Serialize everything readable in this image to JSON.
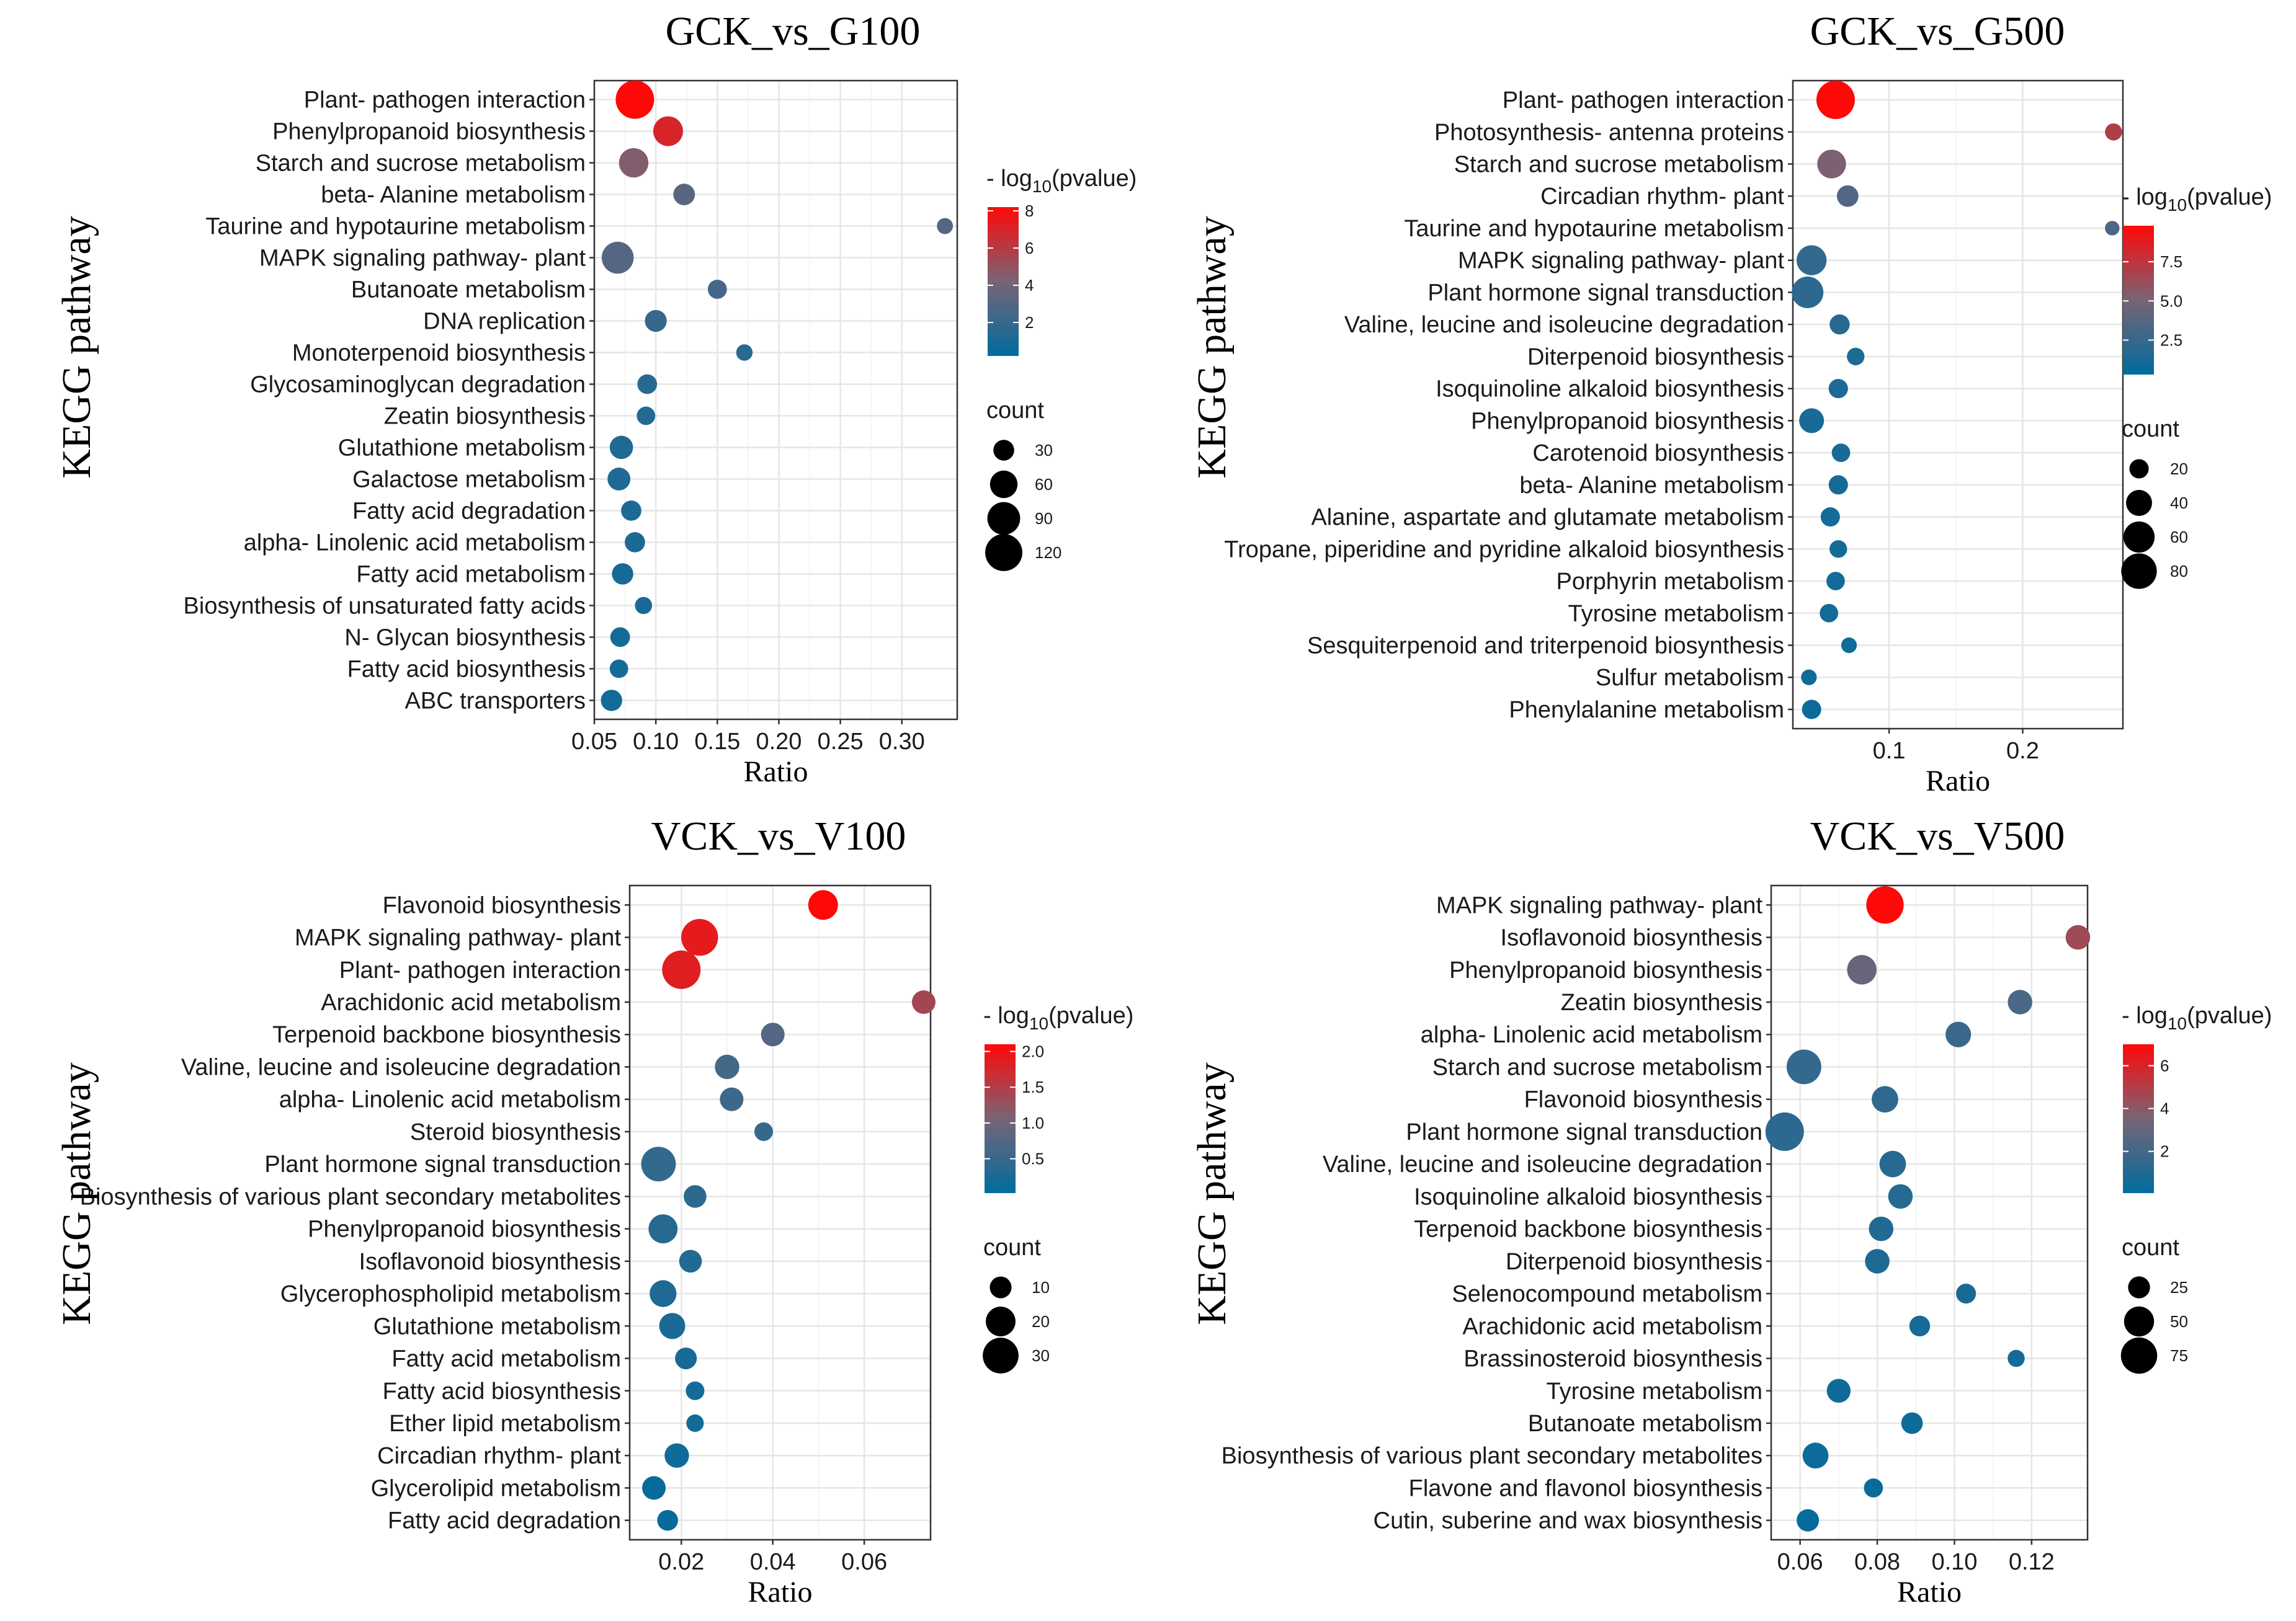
{
  "chart_data": [
    {
      "type": "scatter",
      "title": "GCK_vs_G100",
      "xlabel": "Ratio",
      "ylabel": "KEGG pathway",
      "xlim": [
        0.05,
        0.345
      ],
      "xticks": [
        0.05,
        0.1,
        0.15,
        0.2,
        0.25,
        0.3
      ],
      "xtick_labels": [
        "0.05",
        "0.10",
        "0.15",
        "0.20",
        "0.25",
        "0.30"
      ],
      "color_legend": {
        "title_prefix": "- log",
        "title_sub": "10",
        "title_suffix": "(pvalue)",
        "min": 0.2,
        "max": 8.2,
        "ticks": [
          2,
          4,
          6,
          8
        ],
        "tick_labels": [
          "2",
          "4",
          "6",
          "8"
        ]
      },
      "size_legend": {
        "title": "count",
        "values": [
          30,
          60,
          90,
          120
        ],
        "labels": [
          "30",
          "60",
          "90",
          "120"
        ],
        "min": 5,
        "max": 130
      },
      "points": [
        {
          "pathway": "Plant- pathogen interaction",
          "ratio": 0.083,
          "count": 130,
          "logp": 8.2
        },
        {
          "pathway": "Phenylpropanoid biosynthesis",
          "ratio": 0.11,
          "count": 72,
          "logp": 7.0
        },
        {
          "pathway": "Starch and sucrose metabolism",
          "ratio": 0.082,
          "count": 70,
          "logp": 4.5
        },
        {
          "pathway": "beta- Alanine metabolism",
          "ratio": 0.123,
          "count": 33,
          "logp": 3.2
        },
        {
          "pathway": "Taurine and hypotaurine metabolism",
          "ratio": 0.335,
          "count": 15,
          "logp": 3.0
        },
        {
          "pathway": "MAPK signaling pathway- plant",
          "ratio": 0.069,
          "count": 85,
          "logp": 3.0
        },
        {
          "pathway": "Butanoate metabolism",
          "ratio": 0.15,
          "count": 24,
          "logp": 2.5
        },
        {
          "pathway": "DNA replication",
          "ratio": 0.1,
          "count": 34,
          "logp": 2.0
        },
        {
          "pathway": "Monoterpenoid biosynthesis",
          "ratio": 0.172,
          "count": 16,
          "logp": 1.6
        },
        {
          "pathway": "Glycosaminoglycan degradation",
          "ratio": 0.093,
          "count": 26,
          "logp": 1.5
        },
        {
          "pathway": "Zeatin biosynthesis",
          "ratio": 0.092,
          "count": 22,
          "logp": 1.3
        },
        {
          "pathway": "Glutathione metabolism",
          "ratio": 0.072,
          "count": 40,
          "logp": 1.2
        },
        {
          "pathway": "Galactose metabolism",
          "ratio": 0.07,
          "count": 38,
          "logp": 1.2
        },
        {
          "pathway": "Fatty acid degradation",
          "ratio": 0.08,
          "count": 28,
          "logp": 1.1
        },
        {
          "pathway": "alpha- Linolenic acid metabolism",
          "ratio": 0.083,
          "count": 28,
          "logp": 1.1
        },
        {
          "pathway": "Fatty acid metabolism",
          "ratio": 0.073,
          "count": 32,
          "logp": 1.0
        },
        {
          "pathway": "Biosynthesis of unsaturated fatty acids",
          "ratio": 0.09,
          "count": 18,
          "logp": 1.0
        },
        {
          "pathway": "N- Glycan biosynthesis",
          "ratio": 0.071,
          "count": 26,
          "logp": 0.9
        },
        {
          "pathway": "Fatty acid biosynthesis",
          "ratio": 0.07,
          "count": 22,
          "logp": 0.9
        },
        {
          "pathway": "ABC transporters",
          "ratio": 0.064,
          "count": 32,
          "logp": 0.8
        }
      ]
    },
    {
      "type": "scatter",
      "title": "GCK_vs_G500",
      "xlabel": "Ratio",
      "ylabel": "KEGG pathway",
      "xlim": [
        0.028,
        0.275
      ],
      "xticks": [
        0.1,
        0.2
      ],
      "xtick_labels": [
        "0.1",
        "0.2"
      ],
      "color_legend": {
        "title_prefix": "- log",
        "title_sub": "10",
        "title_suffix": "(pvalue)",
        "min": 0.3,
        "max": 9.8,
        "ticks": [
          2.5,
          5.0,
          7.5
        ],
        "tick_labels": [
          "2.5",
          "5.0",
          "7.5"
        ]
      },
      "size_legend": {
        "title": "count",
        "values": [
          20,
          40,
          60,
          80
        ],
        "labels": [
          "20",
          "40",
          "60",
          "80"
        ],
        "min": 5,
        "max": 95
      },
      "points": [
        {
          "pathway": "Plant- pathogen interaction",
          "ratio": 0.06,
          "count": 95,
          "logp": 9.8
        },
        {
          "pathway": "Photosynthesis- antenna proteins",
          "ratio": 0.268,
          "count": 15,
          "logp": 7.0
        },
        {
          "pathway": "Starch and sucrose metabolism",
          "ratio": 0.057,
          "count": 50,
          "logp": 5.2
        },
        {
          "pathway": "Circadian rhythm- plant",
          "ratio": 0.069,
          "count": 26,
          "logp": 3.5
        },
        {
          "pathway": "Taurine and hypotaurine metabolism",
          "ratio": 0.267,
          "count": 10,
          "logp": 3.2
        },
        {
          "pathway": "MAPK signaling pathway- plant",
          "ratio": 0.042,
          "count": 55,
          "logp": 2.3
        },
        {
          "pathway": "Plant hormone signal transduction",
          "ratio": 0.039,
          "count": 62,
          "logp": 2.1
        },
        {
          "pathway": "Valine, leucine and isoleucine degradation",
          "ratio": 0.063,
          "count": 22,
          "logp": 1.8
        },
        {
          "pathway": "Diterpenoid biosynthesis",
          "ratio": 0.075,
          "count": 16,
          "logp": 1.5
        },
        {
          "pathway": "Isoquinoline alkaloid biosynthesis",
          "ratio": 0.062,
          "count": 20,
          "logp": 1.4
        },
        {
          "pathway": "Phenylpropanoid biosynthesis",
          "ratio": 0.042,
          "count": 36,
          "logp": 1.3
        },
        {
          "pathway": "Carotenoid biosynthesis",
          "ratio": 0.064,
          "count": 18,
          "logp": 1.3
        },
        {
          "pathway": "beta- Alanine metabolism",
          "ratio": 0.062,
          "count": 20,
          "logp": 1.2
        },
        {
          "pathway": "Alanine, aspartate and glutamate metabolism",
          "ratio": 0.056,
          "count": 20,
          "logp": 1.1
        },
        {
          "pathway": "Tropane, piperidine and pyridine alkaloid biosynthesis",
          "ratio": 0.062,
          "count": 16,
          "logp": 1.1
        },
        {
          "pathway": "Porphyrin metabolism",
          "ratio": 0.06,
          "count": 18,
          "logp": 1.0
        },
        {
          "pathway": "Tyrosine metabolism",
          "ratio": 0.055,
          "count": 18,
          "logp": 1.0
        },
        {
          "pathway": "Sesquiterpenoid and triterpenoid biosynthesis",
          "ratio": 0.07,
          "count": 12,
          "logp": 0.9
        },
        {
          "pathway": "Sulfur metabolism",
          "ratio": 0.04,
          "count": 12,
          "logp": 0.8
        },
        {
          "pathway": "Phenylalanine metabolism",
          "ratio": 0.042,
          "count": 20,
          "logp": 0.8
        }
      ]
    },
    {
      "type": "scatter",
      "title": "VCK_vs_V100",
      "xlabel": "Ratio",
      "ylabel": "KEGG pathway",
      "xlim": [
        0.0087,
        0.0745
      ],
      "xticks": [
        0.02,
        0.04,
        0.06
      ],
      "xtick_labels": [
        "0.02",
        "0.04",
        "0.06"
      ],
      "color_legend": {
        "title_prefix": "- log",
        "title_sub": "10",
        "title_suffix": "(pvalue)",
        "min": 0.02,
        "max": 2.1,
        "ticks": [
          0.5,
          1.0,
          1.5,
          2.0
        ],
        "tick_labels": [
          "0.5",
          "1.0",
          "1.5",
          "2.0"
        ]
      },
      "size_legend": {
        "title": "count",
        "values": [
          10,
          20,
          30
        ],
        "labels": [
          "10",
          "20",
          "30"
        ],
        "min": 2,
        "max": 35
      },
      "points": [
        {
          "pathway": "Flavonoid biosynthesis",
          "ratio": 0.051,
          "count": 20,
          "logp": 2.1
        },
        {
          "pathway": "MAPK signaling pathway- plant",
          "ratio": 0.024,
          "count": 32,
          "logp": 1.9
        },
        {
          "pathway": "Plant- pathogen interaction",
          "ratio": 0.02,
          "count": 35,
          "logp": 1.85
        },
        {
          "pathway": "Arachidonic acid metabolism",
          "ratio": 0.073,
          "count": 12,
          "logp": 1.4
        },
        {
          "pathway": "Terpenoid backbone biosynthesis",
          "ratio": 0.04,
          "count": 12,
          "logp": 0.75
        },
        {
          "pathway": "Valine, leucine and isoleucine degradation",
          "ratio": 0.03,
          "count": 13,
          "logp": 0.6
        },
        {
          "pathway": "alpha- Linolenic acid metabolism",
          "ratio": 0.031,
          "count": 12,
          "logp": 0.55
        },
        {
          "pathway": "Steroid biosynthesis",
          "ratio": 0.038,
          "count": 7,
          "logp": 0.5
        },
        {
          "pathway": "Plant hormone signal transduction",
          "ratio": 0.015,
          "count": 28,
          "logp": 0.45
        },
        {
          "pathway": "Biosynthesis of various plant secondary metabolites",
          "ratio": 0.023,
          "count": 11,
          "logp": 0.4
        },
        {
          "pathway": "Phenylpropanoid biosynthesis",
          "ratio": 0.016,
          "count": 19,
          "logp": 0.35
        },
        {
          "pathway": "Isoflavonoid biosynthesis",
          "ratio": 0.022,
          "count": 11,
          "logp": 0.3
        },
        {
          "pathway": "Glycerophospholipid metabolism",
          "ratio": 0.016,
          "count": 16,
          "logp": 0.28
        },
        {
          "pathway": "Glutathione metabolism",
          "ratio": 0.018,
          "count": 15,
          "logp": 0.25
        },
        {
          "pathway": "Fatty acid metabolism",
          "ratio": 0.021,
          "count": 10,
          "logp": 0.22
        },
        {
          "pathway": "Fatty acid biosynthesis",
          "ratio": 0.023,
          "count": 7,
          "logp": 0.2
        },
        {
          "pathway": "Ether lipid metabolism",
          "ratio": 0.023,
          "count": 6,
          "logp": 0.18
        },
        {
          "pathway": "Circadian rhythm- plant",
          "ratio": 0.019,
          "count": 13,
          "logp": 0.15
        },
        {
          "pathway": "Glycerolipid metabolism",
          "ratio": 0.014,
          "count": 12,
          "logp": 0.1
        },
        {
          "pathway": "Fatty acid degradation",
          "ratio": 0.017,
          "count": 9,
          "logp": 0.08
        }
      ]
    },
    {
      "type": "scatter",
      "title": "VCK_vs_V500",
      "xlabel": "Ratio",
      "ylabel": "KEGG pathway",
      "xlim": [
        0.0525,
        0.1345
      ],
      "xticks": [
        0.06,
        0.08,
        0.1,
        0.12
      ],
      "xtick_labels": [
        "0.06",
        "0.08",
        "0.10",
        "0.12"
      ],
      "color_legend": {
        "title_prefix": "- log",
        "title_sub": "10",
        "title_suffix": "(pvalue)",
        "min": 0.05,
        "max": 7.0,
        "ticks": [
          2,
          4,
          6
        ],
        "tick_labels": [
          "2",
          "4",
          "6"
        ]
      },
      "size_legend": {
        "title": "count",
        "values": [
          25,
          50,
          75
        ],
        "labels": [
          "25",
          "50",
          "75"
        ],
        "min": 5,
        "max": 85
      },
      "points": [
        {
          "pathway": "MAPK signaling pathway- plant",
          "ratio": 0.082,
          "count": 80,
          "logp": 7.0
        },
        {
          "pathway": "Isoflavonoid biosynthesis",
          "ratio": 0.132,
          "count": 32,
          "logp": 4.5
        },
        {
          "pathway": "Phenylpropanoid biosynthesis",
          "ratio": 0.076,
          "count": 48,
          "logp": 3.0
        },
        {
          "pathway": "Zeatin biosynthesis",
          "ratio": 0.117,
          "count": 32,
          "logp": 2.2
        },
        {
          "pathway": "alpha- Linolenic acid metabolism",
          "ratio": 0.101,
          "count": 35,
          "logp": 1.7
        },
        {
          "pathway": "Starch and sucrose metabolism",
          "ratio": 0.061,
          "count": 68,
          "logp": 1.5
        },
        {
          "pathway": "Flavonoid biosynthesis",
          "ratio": 0.082,
          "count": 38,
          "logp": 1.4
        },
        {
          "pathway": "Plant hormone signal transduction",
          "ratio": 0.056,
          "count": 85,
          "logp": 1.3
        },
        {
          "pathway": "Valine, leucine and isoleucine degradation",
          "ratio": 0.084,
          "count": 38,
          "logp": 1.2
        },
        {
          "pathway": "Isoquinoline alkaloid biosynthesis",
          "ratio": 0.086,
          "count": 32,
          "logp": 1.1
        },
        {
          "pathway": "Terpenoid backbone biosynthesis",
          "ratio": 0.081,
          "count": 32,
          "logp": 1.0
        },
        {
          "pathway": "Diterpenoid biosynthesis",
          "ratio": 0.08,
          "count": 32,
          "logp": 0.9
        },
        {
          "pathway": "Selenocompound metabolism",
          "ratio": 0.103,
          "count": 20,
          "logp": 0.8
        },
        {
          "pathway": "Arachidonic acid metabolism",
          "ratio": 0.091,
          "count": 22,
          "logp": 0.7
        },
        {
          "pathway": "Brassinosteroid biosynthesis",
          "ratio": 0.116,
          "count": 14,
          "logp": 0.6
        },
        {
          "pathway": "Tyrosine metabolism",
          "ratio": 0.07,
          "count": 30,
          "logp": 0.5
        },
        {
          "pathway": "Butanoate metabolism",
          "ratio": 0.089,
          "count": 24,
          "logp": 0.45
        },
        {
          "pathway": "Biosynthesis of various plant secondary metabolites",
          "ratio": 0.064,
          "count": 36,
          "logp": 0.4
        },
        {
          "pathway": "Flavone and flavonol biosynthesis",
          "ratio": 0.079,
          "count": 18,
          "logp": 0.3
        },
        {
          "pathway": "Cutin, suberine and wax biosynthesis",
          "ratio": 0.062,
          "count": 26,
          "logp": 0.2
        }
      ]
    }
  ]
}
